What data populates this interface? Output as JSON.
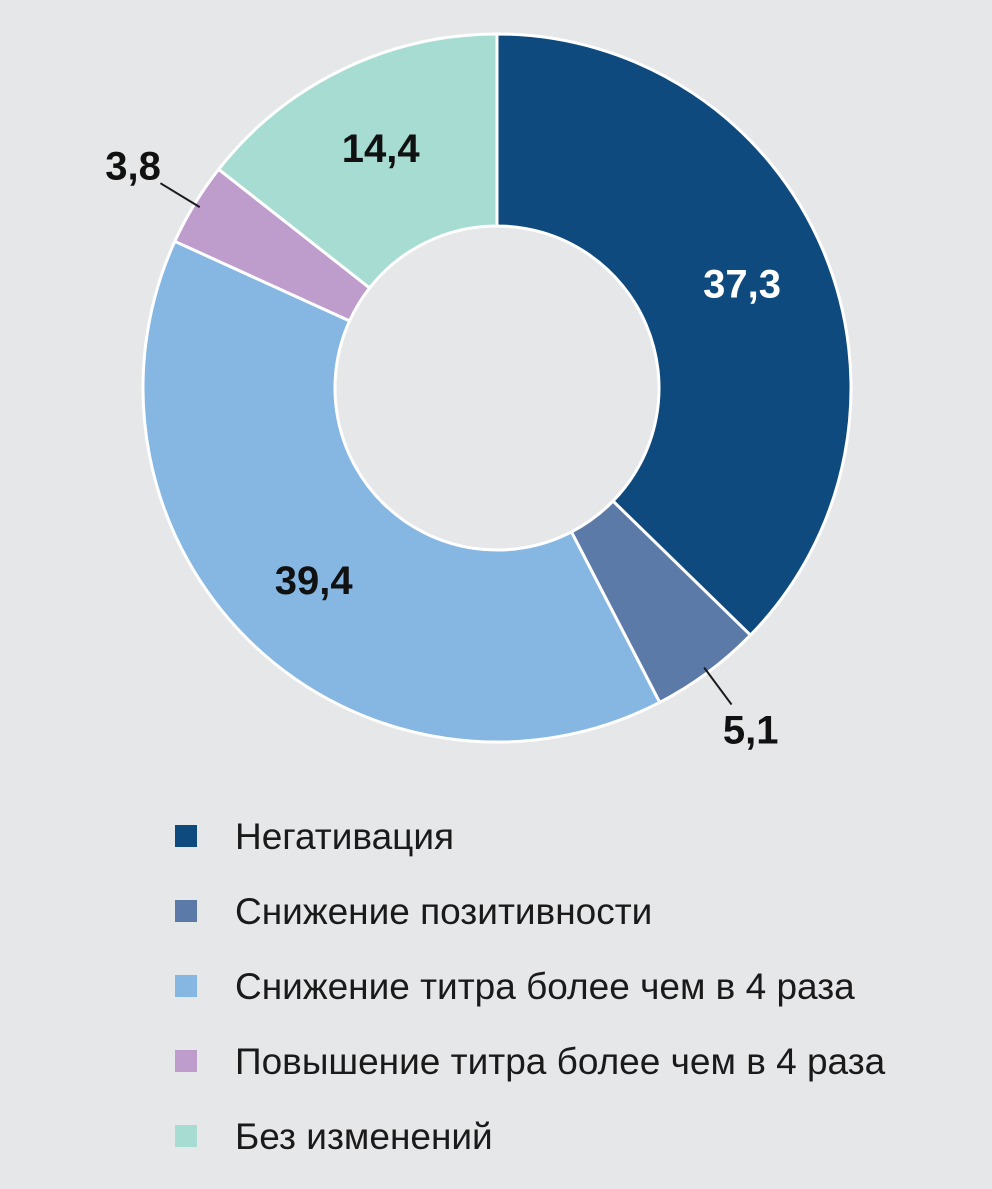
{
  "chart_data": {
    "type": "pie",
    "donut": true,
    "slices": [
      {
        "label": "Негативация",
        "value": 37.3,
        "value_text": "37,3",
        "color": "#0f4a7e",
        "label_color": "#ffffff"
      },
      {
        "label": "Снижение позитивности",
        "value": 5.1,
        "value_text": "5,1",
        "color": "#5c7aa8",
        "label_color": "#111111"
      },
      {
        "label": "Снижение титра более чем в 4 раза",
        "value": 39.4,
        "value_text": "39,4",
        "color": "#86b7e3",
        "label_color": "#111111"
      },
      {
        "label": "Повышение титра более чем в 4 раза",
        "value": 3.8,
        "value_text": "3,8",
        "color": "#be9ccc",
        "label_color": "#111111"
      },
      {
        "label": "Без изменений",
        "value": 14.4,
        "value_text": "14,4",
        "color": "#a6dcd2",
        "label_color": "#111111"
      }
    ],
    "legend_position": "bottom"
  }
}
